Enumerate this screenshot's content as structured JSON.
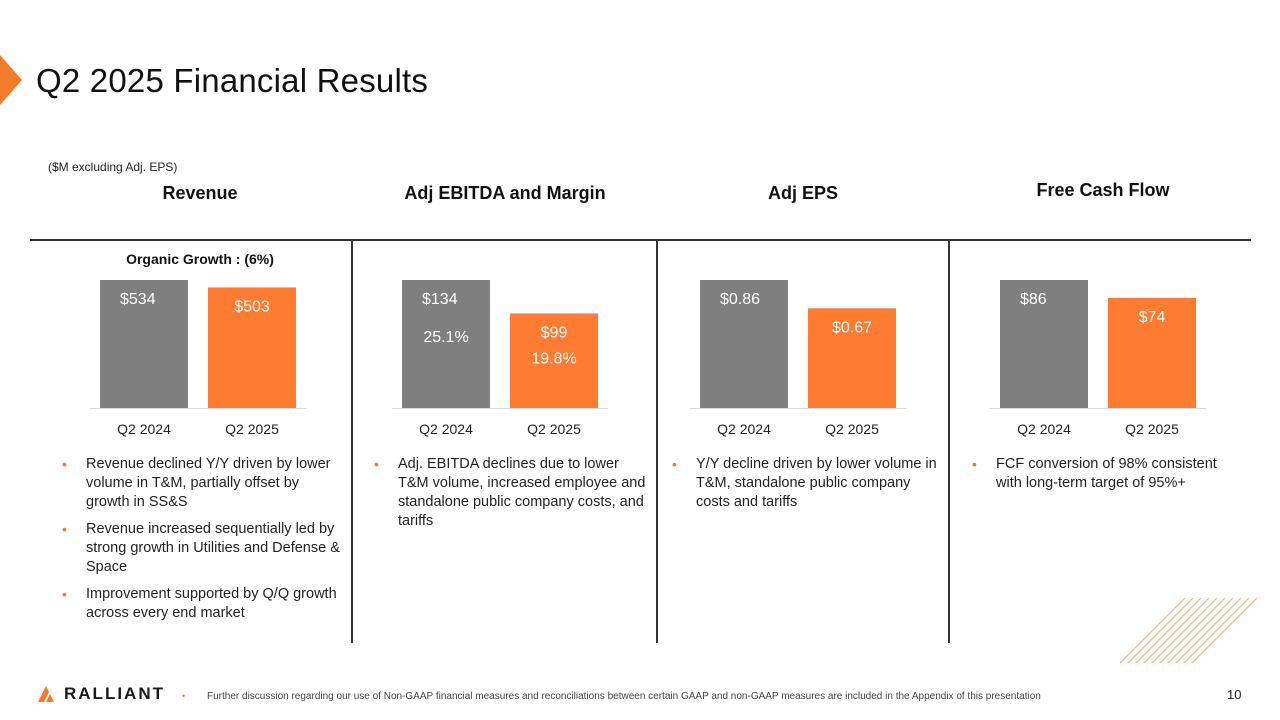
{
  "title": "Q2 2025 Financial Results",
  "units_note": "($M excluding Adj. EPS)",
  "colors": {
    "accent": "#f47b2b",
    "prior": "#7f7f7f",
    "current": "#fe7b32"
  },
  "columns": [
    {
      "header": "Revenue",
      "subheader": "Organic Growth : (6%)",
      "bullets": [
        "Revenue declined Y/Y driven by lower volume in T&M, partially offset by growth in SS&S",
        "Revenue increased sequentially led by strong growth in Utilities and Defense & Space",
        "Improvement supported by Q/Q growth across every end market"
      ]
    },
    {
      "header": "Adj EBITDA and Margin",
      "bullets": [
        "Adj. EBITDA declines due to lower T&M volume, increased employee and standalone public company costs, and tariffs"
      ]
    },
    {
      "header": "Adj EPS",
      "bullets": [
        "Y/Y decline driven by lower volume in T&M, standalone public company costs and tariffs"
      ]
    },
    {
      "header": "Free Cash Flow",
      "bullets": [
        "FCF conversion of 98% consistent with long-term target of 95%+"
      ]
    }
  ],
  "chart_data": [
    {
      "type": "bar",
      "categories": [
        "Q2 2024",
        "Q2 2025"
      ],
      "values": [
        534,
        503
      ],
      "labels": [
        "$534",
        "$503"
      ],
      "subtitle": "Organic Growth : (6%)"
    },
    {
      "type": "bar",
      "categories": [
        "Q2 2024",
        "Q2 2025"
      ],
      "values": [
        134,
        99
      ],
      "labels": [
        "$134",
        "$99"
      ],
      "margin_labels": [
        "25.1%",
        "19.8%"
      ]
    },
    {
      "type": "bar",
      "categories": [
        "Q2 2024",
        "Q2 2025"
      ],
      "values": [
        0.86,
        0.67
      ],
      "labels": [
        "$0.86",
        "$0.67"
      ]
    },
    {
      "type": "bar",
      "categories": [
        "Q2 2024",
        "Q2 2025"
      ],
      "values": [
        86,
        74
      ],
      "labels": [
        "$86",
        "$74"
      ]
    }
  ],
  "footer": {
    "logo": "RALLIANT",
    "footnote": "Further discussion regarding our use of Non-GAAP financial measures and reconciliations between certain GAAP and non-GAAP measures are included in the Appendix of this presentation",
    "page_number": "10"
  }
}
